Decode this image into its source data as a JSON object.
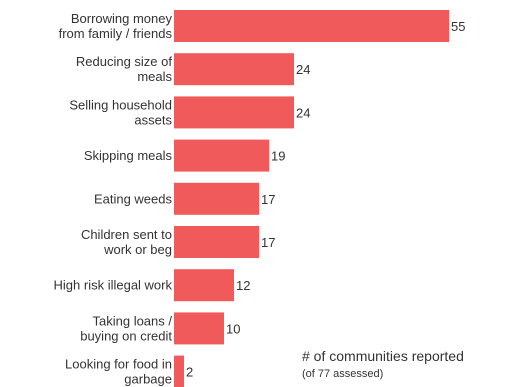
{
  "chart_data": {
    "type": "bar",
    "orientation": "horizontal",
    "categories": [
      [
        "Borrowing money",
        "from family / friends"
      ],
      [
        "Reducing size of",
        "meals"
      ],
      [
        "Selling household",
        "assets"
      ],
      [
        "Skipping meals"
      ],
      [
        "Eating weeds"
      ],
      [
        "Children sent to",
        "work or beg"
      ],
      [
        "High risk illegal work"
      ],
      [
        "Taking loans /",
        "buying on credit"
      ],
      [
        "Looking for food in",
        "garbage"
      ]
    ],
    "values": [
      55,
      24,
      24,
      19,
      17,
      17,
      12,
      10,
      2
    ],
    "bar_color": "#f05a5a",
    "data_labels": true,
    "xlim": [
      0,
      60
    ],
    "grid": false,
    "legend": "none",
    "annotation": {
      "text": "# of communities reported",
      "subtext": "(of 77 assessed)"
    }
  }
}
